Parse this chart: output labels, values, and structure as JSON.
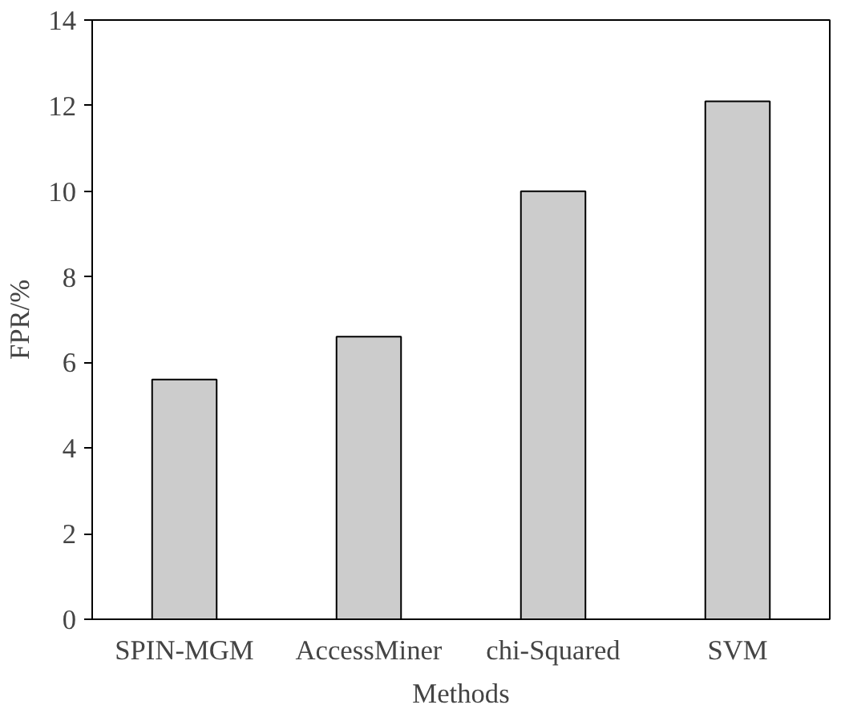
{
  "chart_data": {
    "type": "bar",
    "xlabel": "Methods",
    "ylabel": "FPR/%",
    "categories": [
      "SPIN-MGM",
      "AccessMiner",
      "chi-Squared",
      "SVM"
    ],
    "values": [
      5.6,
      6.6,
      10.0,
      12.1
    ],
    "color": "#cccccc",
    "ylim": [
      0,
      14
    ],
    "yticks": [
      0,
      2,
      4,
      6,
      8,
      10,
      12,
      14
    ]
  }
}
